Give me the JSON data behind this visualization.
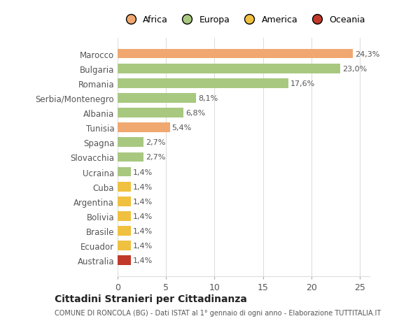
{
  "categories": [
    "Australia",
    "Ecuador",
    "Brasile",
    "Bolivia",
    "Argentina",
    "Cuba",
    "Ucraina",
    "Slovacchia",
    "Spagna",
    "Tunisia",
    "Albania",
    "Serbia/Montenegro",
    "Romania",
    "Bulgaria",
    "Marocco"
  ],
  "values": [
    1.4,
    1.4,
    1.4,
    1.4,
    1.4,
    1.4,
    1.4,
    2.7,
    2.7,
    5.4,
    6.8,
    8.1,
    17.6,
    23.0,
    24.3
  ],
  "labels": [
    "1,4%",
    "1,4%",
    "1,4%",
    "1,4%",
    "1,4%",
    "1,4%",
    "1,4%",
    "2,7%",
    "2,7%",
    "5,4%",
    "6,8%",
    "8,1%",
    "17,6%",
    "23,0%",
    "24,3%"
  ],
  "colors": [
    "#c0392b",
    "#f0c040",
    "#f0c040",
    "#f0c040",
    "#f0c040",
    "#f0c040",
    "#a8c880",
    "#a8c880",
    "#a8c880",
    "#f0a870",
    "#a8c880",
    "#a8c880",
    "#a8c880",
    "#a8c880",
    "#f0a870"
  ],
  "legend_names": [
    "Africa",
    "Europa",
    "America",
    "Oceania"
  ],
  "legend_colors": [
    "#f0a870",
    "#a8c880",
    "#f0c040",
    "#c0392b"
  ],
  "title": "Cittadini Stranieri per Cittadinanza",
  "subtitle": "COMUNE DI RONCOLA (BG) - Dati ISTAT al 1° gennaio di ogni anno - Elaborazione TUTTITALIA.IT",
  "xlim": [
    0,
    26
  ],
  "xticks": [
    0,
    5,
    10,
    15,
    20,
    25
  ],
  "background_color": "#ffffff",
  "grid_color": "#dddddd"
}
